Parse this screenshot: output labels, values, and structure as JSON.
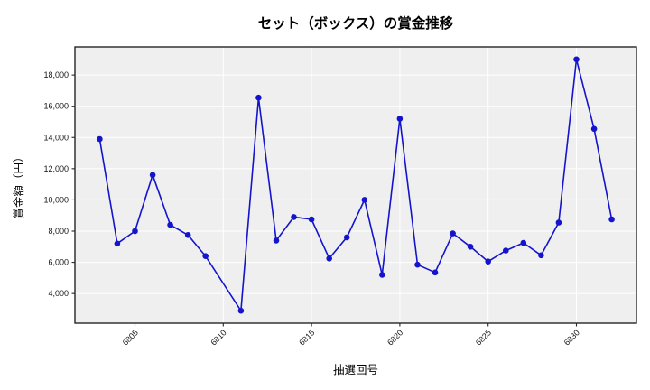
{
  "chart_data": {
    "type": "line",
    "title": "セット（ボックス）の賞金推移",
    "xlabel": "抽選回号",
    "ylabel": "賞金額（円）",
    "x": [
      6803,
      6804,
      6805,
      6806,
      6807,
      6808,
      6809,
      6811,
      6812,
      6813,
      6814,
      6815,
      6816,
      6817,
      6818,
      6819,
      6820,
      6821,
      6822,
      6823,
      6824,
      6825,
      6826,
      6827,
      6828,
      6829,
      6830,
      6831,
      6832
    ],
    "y": [
      13900,
      7200,
      8000,
      11600,
      8400,
      7750,
      6400,
      2900,
      16550,
      7400,
      8900,
      8750,
      6250,
      7600,
      10000,
      5200,
      15200,
      5850,
      5350,
      7850,
      7000,
      6050,
      6750,
      7250,
      6450,
      8550,
      19000,
      14550,
      8750
    ],
    "note_missing_x": 6810,
    "xticks": [
      6805,
      6810,
      6815,
      6820,
      6825,
      6830
    ],
    "yticks": [
      4000,
      6000,
      8000,
      10000,
      12000,
      14000,
      16000,
      18000
    ],
    "xlim": [
      6801.6,
      6833.4
    ],
    "ylim": [
      2100,
      19800
    ],
    "grid": true,
    "legend": null,
    "colors": {
      "line": "#1414cc",
      "marker": "#1414cc",
      "plot_background": "#efefef",
      "grid": "#ffffff",
      "frame": "#262626",
      "text": "#000000"
    },
    "marker_radius": 3.3,
    "line_width": 1.6
  }
}
